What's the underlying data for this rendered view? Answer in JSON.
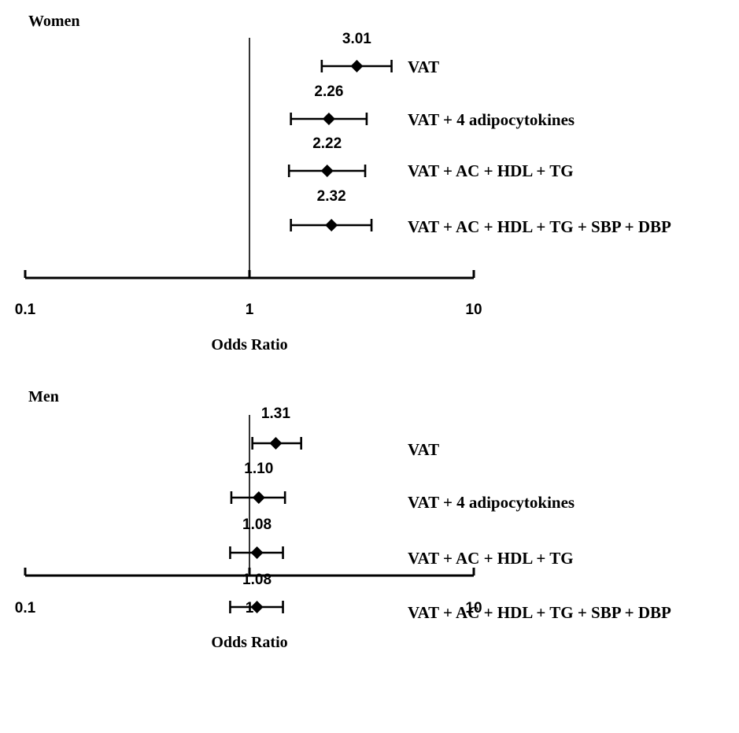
{
  "chart_data": [
    {
      "type": "forest",
      "title": "Women",
      "xlabel": "Odds Ratio",
      "xscale": "log",
      "xlim": [
        0.1,
        10
      ],
      "xticks": [
        0.1,
        1,
        10
      ],
      "xtick_labels": [
        "0.1",
        "1",
        "10"
      ],
      "reference_value": 1,
      "grid": false,
      "rows": [
        {
          "label": "VAT",
          "or": 3.01,
          "or_label": "3.01",
          "ci": [
            2.1,
            4.3
          ]
        },
        {
          "label": "VAT + 4 adipocytokines",
          "or": 2.26,
          "or_label": "2.26",
          "ci": [
            1.53,
            3.33
          ]
        },
        {
          "label": "VAT + AC + HDL + TG",
          "or": 2.22,
          "or_label": "2.22",
          "ci": [
            1.5,
            3.28
          ]
        },
        {
          "label": "VAT + AC + HDL + TG + SBP + DBP",
          "or": 2.32,
          "or_label": "2.32",
          "ci": [
            1.53,
            3.5
          ]
        }
      ]
    },
    {
      "type": "forest",
      "title": "Men",
      "xlabel": "Odds Ratio",
      "xscale": "log",
      "xlim": [
        0.1,
        10
      ],
      "xticks": [
        0.1,
        1,
        10
      ],
      "xtick_labels": [
        "0.1",
        "1",
        "10"
      ],
      "reference_value": 1,
      "grid": false,
      "rows": [
        {
          "label": "VAT",
          "or": 1.31,
          "or_label": "1.31",
          "ci": [
            1.03,
            1.7
          ]
        },
        {
          "label": "VAT + 4 adipocytokines",
          "or": 1.1,
          "or_label": "1.10",
          "ci": [
            0.83,
            1.44
          ]
        },
        {
          "label": "VAT + AC + HDL + TG",
          "or": 1.08,
          "or_label": "1.08",
          "ci": [
            0.82,
            1.41
          ]
        },
        {
          "label": "VAT + AC + HDL + TG + SBP + DBP",
          "or": 1.08,
          "or_label": "1.08",
          "ci": [
            0.82,
            1.41
          ]
        }
      ]
    }
  ]
}
